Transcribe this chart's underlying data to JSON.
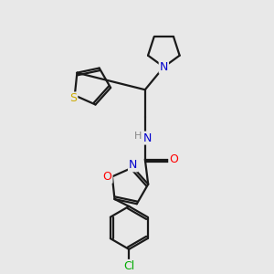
{
  "background_color": "#e8e8e8",
  "bond_color": "#1a1a1a",
  "atom_colors": {
    "N": "#0000cd",
    "O": "#ff0000",
    "S": "#ccaa00",
    "Cl": "#00aa00",
    "H": "#888888",
    "C": "#1a1a1a"
  }
}
